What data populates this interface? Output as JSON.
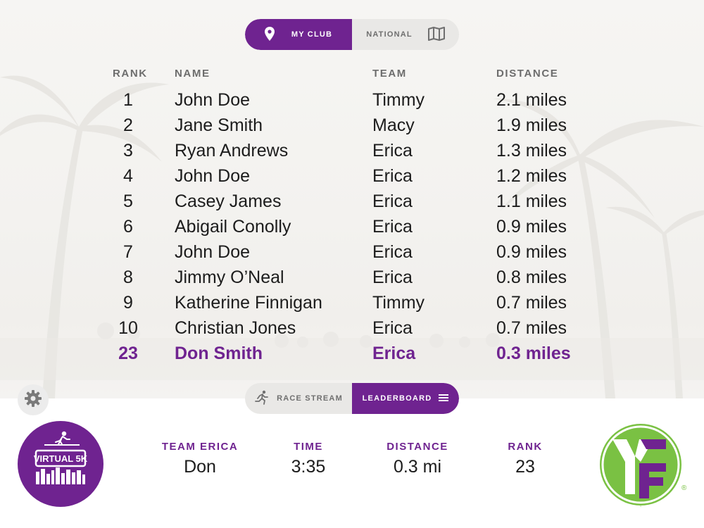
{
  "top_toggle": {
    "options": [
      {
        "label": "My Club",
        "icon": "location-pin-icon",
        "active": true
      },
      {
        "label": "National",
        "icon": "map-icon",
        "active": false
      }
    ]
  },
  "leaderboard": {
    "headers": {
      "rank": "RANK",
      "name": "NAME",
      "team": "TEAM",
      "distance": "DISTANCE"
    },
    "rows": [
      {
        "rank": "1",
        "name": "John Doe",
        "team": "Timmy",
        "distance": "2.1 miles"
      },
      {
        "rank": "2",
        "name": "Jane Smith",
        "team": "Macy",
        "distance": "1.9 miles"
      },
      {
        "rank": "3",
        "name": "Ryan Andrews",
        "team": "Erica",
        "distance": "1.3 miles"
      },
      {
        "rank": "4",
        "name": "John Doe",
        "team": "Erica",
        "distance": "1.2 miles"
      },
      {
        "rank": "5",
        "name": "Casey James",
        "team": "Erica",
        "distance": "1.1 miles"
      },
      {
        "rank": "6",
        "name": "Abigail Conolly",
        "team": "Erica",
        "distance": "0.9 miles"
      },
      {
        "rank": "7",
        "name": "John Doe",
        "team": "Erica",
        "distance": "0.9 miles"
      },
      {
        "rank": "8",
        "name": "Jimmy O’Neal",
        "team": "Erica",
        "distance": "0.8 miles"
      },
      {
        "rank": "9",
        "name": "Katherine Finnigan",
        "team": "Timmy",
        "distance": "0.7 miles"
      },
      {
        "rank": "10",
        "name": "Christian Jones",
        "team": "Erica",
        "distance": "0.7 miles"
      }
    ],
    "current_user": {
      "rank": "23",
      "name": "Don Smith",
      "team": "Erica",
      "distance": "0.3 miles"
    }
  },
  "bottom_toggle": {
    "options": [
      {
        "label": "Race Stream",
        "icon": "runner-icon",
        "active": false
      },
      {
        "label": "Leaderboard",
        "icon": "hamburger-menu-icon",
        "active": true
      }
    ]
  },
  "stats": {
    "team_label": "TEAM ERICA",
    "team_value": "Don",
    "time_label": "TIME",
    "time_value": "3:35",
    "distance_label": "DISTANCE",
    "distance_value": "0.3 mi",
    "rank_label": "RANK",
    "rank_value": "23"
  },
  "logos": {
    "virtual5k_text": "VIRTUAL 5K",
    "yf_text": "YF",
    "registered_mark": "®"
  },
  "colors": {
    "accent": "#6f2390",
    "brand_green": "#7ac143",
    "toggle_bg": "#e9e8e6"
  }
}
